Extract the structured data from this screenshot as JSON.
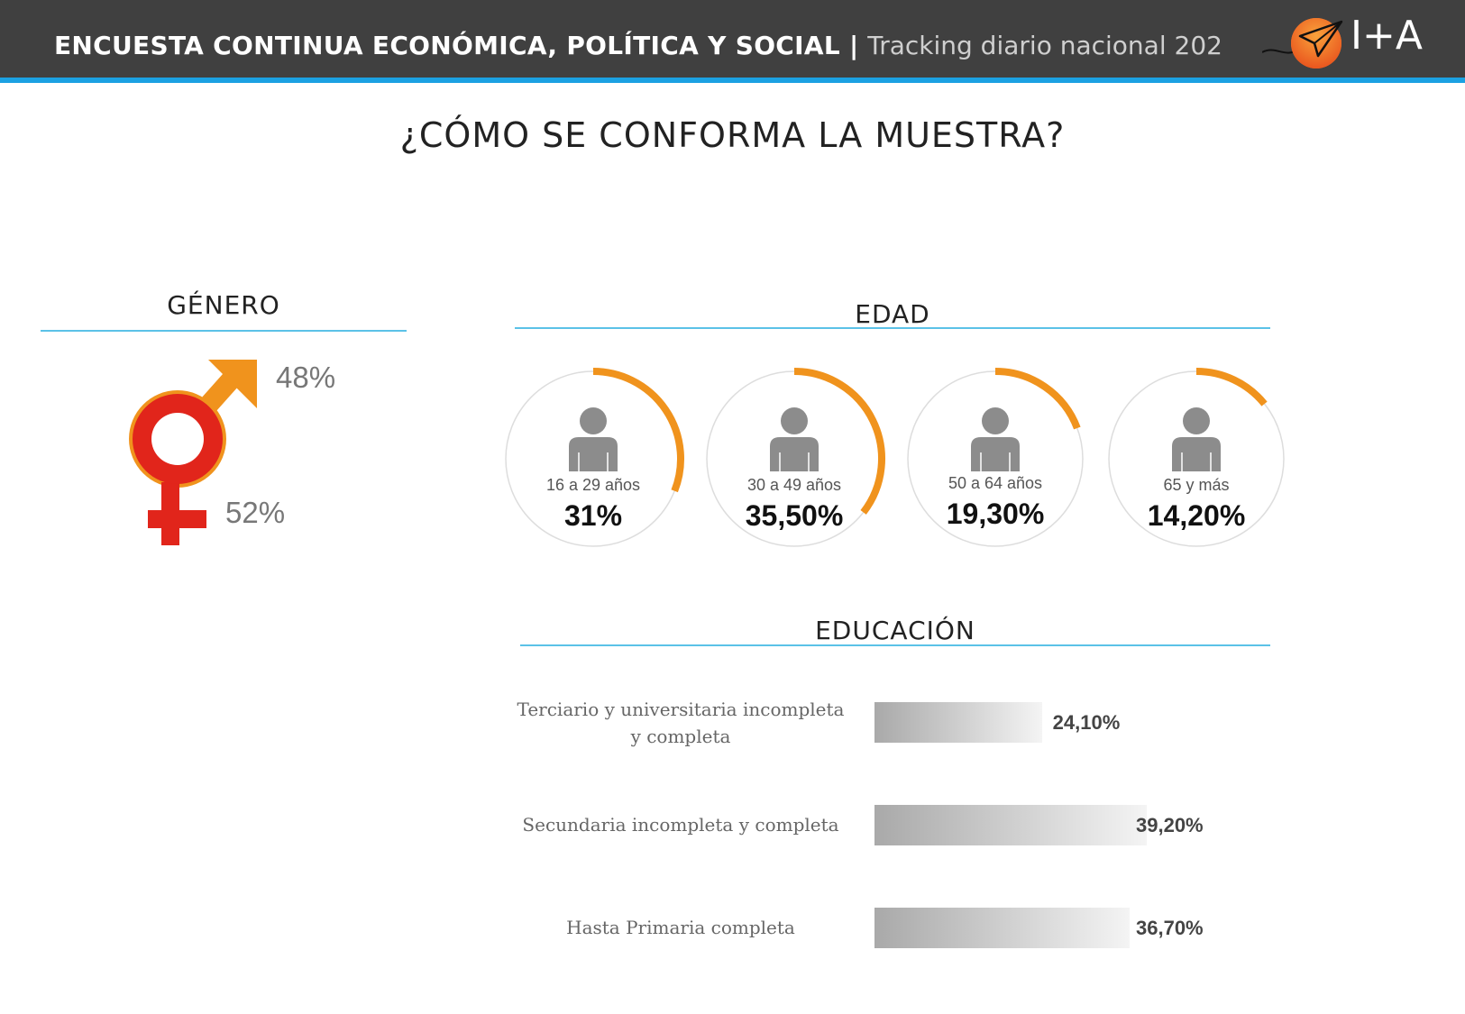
{
  "header": {
    "title_bold": "ENCUESTA CONTINUA ECONÓMICA, POLÍTICA Y SOCIAL",
    "separator": "|",
    "title_light": "Tracking diario nacional 202",
    "logo_text": "I+A"
  },
  "main": {
    "title": "¿CÓMO SE CONFORMA LA MUESTRA?"
  },
  "colors": {
    "header_bg": "#404040",
    "accent_line": "#1ba1e2",
    "male": "#f0931d",
    "female": "#e1251b",
    "ring": "#f0931d"
  },
  "chart_data": [
    {
      "type": "pie",
      "title": "GÉNERO",
      "categories": [
        "male-icon",
        "female-icon"
      ],
      "values": [
        48,
        52
      ],
      "labels": [
        "48%",
        "52%"
      ]
    },
    {
      "type": "pie",
      "title": "EDAD",
      "categories": [
        "16 a 29 años",
        "30 a 49 años",
        "50 a 64 años",
        "65 y más"
      ],
      "values": [
        31,
        35.5,
        19.3,
        14.2
      ],
      "labels": [
        "31%",
        "35,50%",
        "19,30%",
        "14,20%"
      ]
    },
    {
      "type": "bar",
      "title": "EDUCACIÓN",
      "categories": [
        "Terciario y universitaria incompleta y completa",
        "Secundaria incompleta y completa",
        "Hasta Primaria completa"
      ],
      "values": [
        24.1,
        39.2,
        36.7
      ],
      "labels": [
        "24,10%",
        "39,20%",
        "36,70%"
      ]
    }
  ]
}
